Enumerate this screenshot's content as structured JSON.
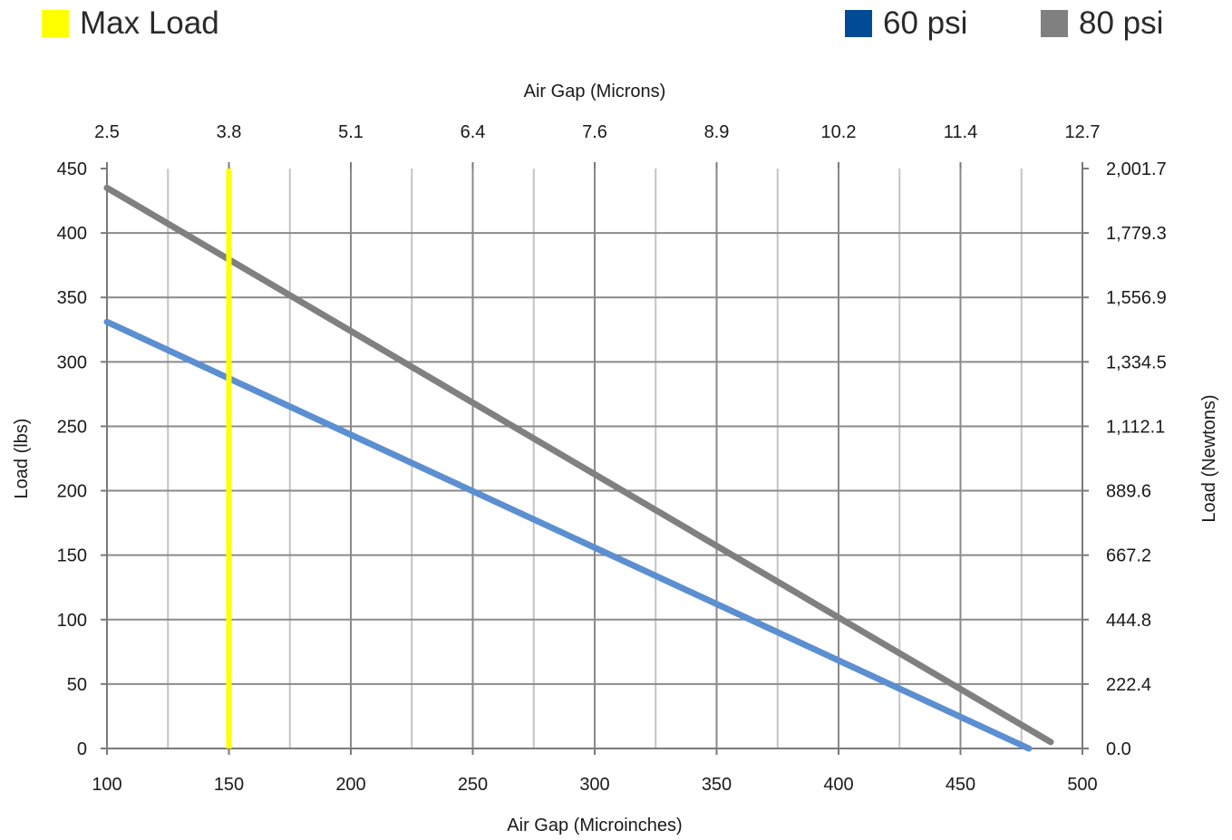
{
  "legend": {
    "max_load": {
      "label": "Max Load",
      "color": "#ffff00"
    },
    "psi60": {
      "label": "60 psi",
      "color": "#004b93"
    },
    "psi80": {
      "label": "80 psi",
      "color": "#808080"
    }
  },
  "chart_data": {
    "type": "line",
    "xlabel": "Air Gap (Microinches)",
    "xlabel_top": "Air Gap (Microns)",
    "ylabel": "Load (lbs)",
    "ylabel_right": "Load (Newtons)",
    "xlim": [
      100,
      500
    ],
    "ylim": [
      0,
      450
    ],
    "x_ticks": [
      100,
      150,
      200,
      250,
      300,
      350,
      400,
      450,
      500
    ],
    "x_minor_gridlines": [
      125,
      175,
      225,
      275,
      325,
      375,
      425,
      475
    ],
    "y_ticks": [
      0,
      50,
      100,
      150,
      200,
      250,
      300,
      350,
      400,
      450
    ],
    "x_top_tick_labels": [
      "2.5",
      "3.8",
      "5.1",
      "6.4",
      "7.6",
      "8.9",
      "10.2",
      "11.4",
      "12.7"
    ],
    "y_right_tick_labels": [
      "0.0",
      "222.4",
      "444.8",
      "667.2",
      "889.6",
      "1,112.1",
      "1,334.5",
      "1,556.9",
      "1,779.3",
      "2,001.7"
    ],
    "grid": true,
    "series": [
      {
        "name": "60 psi",
        "color": "#5b8fd1",
        "x": [
          100,
          478
        ],
        "y": [
          331,
          0
        ]
      },
      {
        "name": "80 psi",
        "color": "#808080",
        "x": [
          100,
          487
        ],
        "y": [
          435,
          5
        ]
      }
    ],
    "vline": {
      "name": "Max Load",
      "x": 150,
      "color": "#ffff00"
    }
  }
}
